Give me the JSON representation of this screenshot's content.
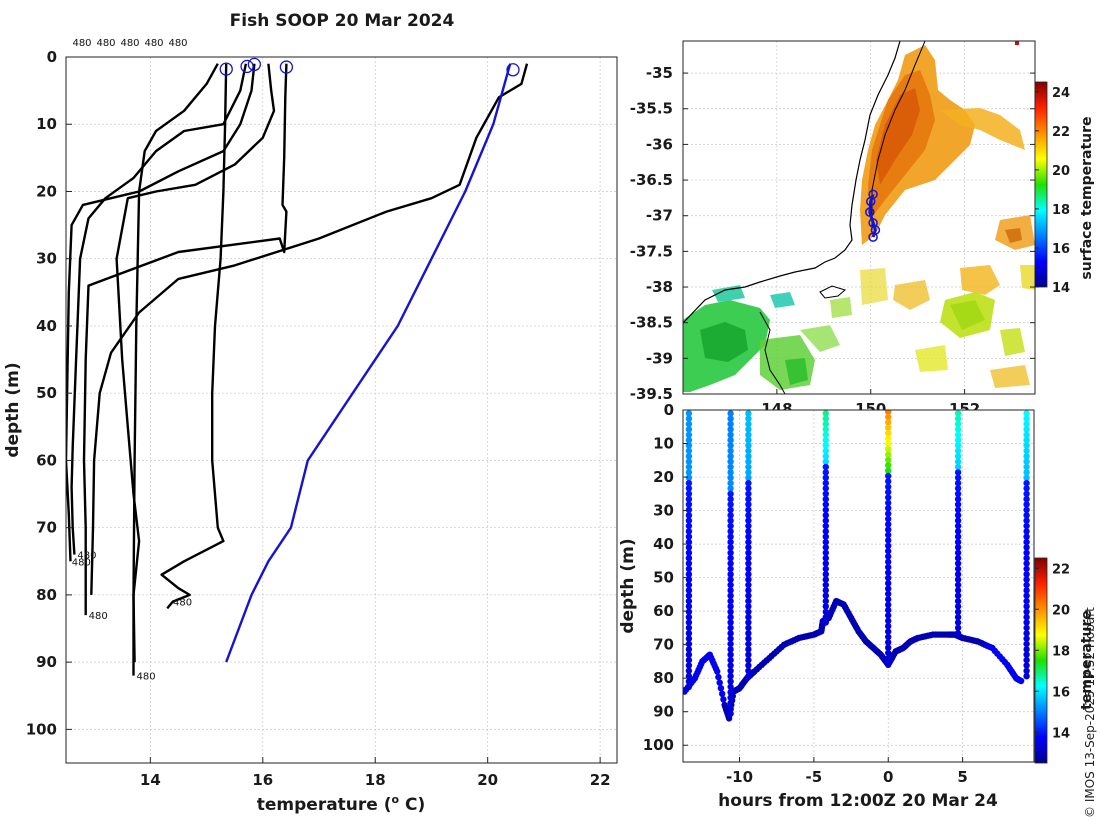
{
  "title": "Fish SOOP 20 Mar 2024",
  "credit": "© IMOS 13-Sep-2025 17:52 Hobart",
  "chart_data": [
    {
      "type": "line",
      "name": "profiles",
      "xlabel": "temperature (",
      "xlabel_sup": "o",
      "xlabel_end": " C)",
      "ylabel": "depth (m)",
      "xlim": [
        12.5,
        22.3
      ],
      "ylim": [
        105,
        0
      ],
      "xticks": [
        14,
        16,
        18,
        20,
        22
      ],
      "yticks": [
        0,
        10,
        20,
        30,
        40,
        50,
        60,
        70,
        80,
        90,
        100
      ],
      "top_labels": [
        "480",
        "480",
        "480",
        "480",
        "480"
      ],
      "end_labels": [
        {
          "text": "480",
          "x": 12.65,
          "y": 74
        },
        {
          "text": "480",
          "x": 12.55,
          "y": 75
        },
        {
          "text": "480",
          "x": 12.85,
          "y": 83
        },
        {
          "text": "480",
          "x": 13.7,
          "y": 92
        },
        {
          "text": "480",
          "x": 14.35,
          "y": 81
        }
      ],
      "surface_markers": [
        {
          "x": 15.35,
          "y": 1.8
        },
        {
          "x": 15.72,
          "y": 1.4
        },
        {
          "x": 15.85,
          "y": 1.1
        },
        {
          "x": 16.42,
          "y": 1.5
        },
        {
          "x": 20.45,
          "y": 1.9
        }
      ],
      "series": [
        {
          "color": "#000000",
          "points": [
            [
              15.35,
              1
            ],
            [
              15.33,
              10
            ],
            [
              15.3,
              20
            ],
            [
              15.25,
              30
            ],
            [
              15.15,
              40
            ],
            [
              15.1,
              50
            ],
            [
              15.1,
              60
            ],
            [
              15.2,
              70
            ],
            [
              15.3,
              72
            ],
            [
              14.6,
              75
            ],
            [
              14.2,
              77
            ],
            [
              14.5,
              79
            ],
            [
              14.7,
              80
            ],
            [
              14.4,
              81
            ],
            [
              14.3,
              82
            ]
          ]
        },
        {
          "color": "#000000",
          "points": [
            [
              15.7,
              1
            ],
            [
              15.6,
              5
            ],
            [
              15.3,
              10
            ],
            [
              14.6,
              11
            ],
            [
              14.1,
              14
            ],
            [
              13.7,
              18
            ],
            [
              13.2,
              21
            ],
            [
              12.9,
              24
            ],
            [
              12.75,
              30
            ],
            [
              12.68,
              45
            ],
            [
              12.62,
              58
            ],
            [
              12.6,
              64
            ],
            [
              12.62,
              70
            ],
            [
              12.65,
              74
            ]
          ]
        },
        {
          "color": "#000000",
          "points": [
            [
              15.85,
              1
            ],
            [
              15.8,
              5
            ],
            [
              15.6,
              10
            ],
            [
              15.3,
              14
            ],
            [
              14.5,
              17
            ],
            [
              13.8,
              20
            ],
            [
              12.8,
              22
            ],
            [
              12.6,
              25
            ],
            [
              12.55,
              35
            ],
            [
              12.52,
              50
            ],
            [
              12.5,
              60
            ],
            [
              12.55,
              68
            ],
            [
              12.58,
              75
            ]
          ]
        },
        {
          "color": "#000000",
          "points": [
            [
              16.42,
              1
            ],
            [
              16.4,
              6
            ],
            [
              16.38,
              15
            ],
            [
              16.35,
              22
            ],
            [
              16.42,
              23
            ],
            [
              16.38,
              29
            ],
            [
              16.3,
              27
            ],
            [
              14.5,
              29
            ],
            [
              12.9,
              34
            ],
            [
              12.85,
              45
            ],
            [
              12.82,
              60
            ],
            [
              12.85,
              70
            ],
            [
              12.85,
              83
            ]
          ]
        },
        {
          "color": "#000000",
          "points": [
            [
              16.1,
              1
            ],
            [
              16.15,
              5
            ],
            [
              16.2,
              8
            ],
            [
              16.0,
              12
            ],
            [
              15.5,
              16
            ],
            [
              14.8,
              19
            ],
            [
              14.1,
              20
            ],
            [
              13.6,
              21
            ],
            [
              13.4,
              30
            ],
            [
              13.5,
              45
            ],
            [
              13.6,
              55
            ],
            [
              13.7,
              65
            ],
            [
              13.8,
              72
            ],
            [
              13.7,
              80
            ],
            [
              13.7,
              92
            ]
          ]
        },
        {
          "color": "#000000",
          "points": [
            [
              20.7,
              1
            ],
            [
              20.6,
              4
            ],
            [
              20.2,
              6
            ],
            [
              19.8,
              12
            ],
            [
              19.5,
              19
            ],
            [
              19.0,
              21
            ],
            [
              18.2,
              23
            ],
            [
              17.0,
              27
            ],
            [
              15.5,
              31
            ],
            [
              14.5,
              33
            ],
            [
              13.8,
              38
            ],
            [
              13.3,
              44
            ],
            [
              13.1,
              50
            ],
            [
              13.0,
              60
            ],
            [
              12.98,
              70
            ],
            [
              12.95,
              80
            ]
          ]
        },
        {
          "color": "#000000",
          "points": [
            [
              15.2,
              1
            ],
            [
              15.0,
              4
            ],
            [
              14.6,
              8
            ],
            [
              14.1,
              11
            ],
            [
              13.9,
              14
            ],
            [
              13.8,
              20
            ],
            [
              13.75,
              40
            ],
            [
              13.72,
              60
            ],
            [
              13.7,
              80
            ],
            [
              13.72,
              90
            ]
          ]
        },
        {
          "color": "#1414d2",
          "points": [
            [
              20.4,
              1
            ],
            [
              20.1,
              10
            ],
            [
              19.6,
              20
            ],
            [
              19.0,
              30
            ],
            [
              18.4,
              40
            ],
            [
              17.6,
              50
            ],
            [
              16.8,
              60
            ],
            [
              16.5,
              70
            ],
            [
              16.1,
              75
            ],
            [
              15.8,
              80
            ],
            [
              15.35,
              90
            ]
          ]
        }
      ]
    },
    {
      "type": "heatmap",
      "name": "surface temperature map",
      "xlim": [
        146,
        153.5
      ],
      "ylim": [
        -39.5,
        -34.55
      ],
      "xticks": [
        148,
        150,
        152
      ],
      "yticks": [
        -35,
        -35.5,
        -36,
        -36.5,
        -37,
        -37.5,
        -38,
        -38.5,
        -39,
        -39.5
      ],
      "xtick_labels": [
        "148",
        "150",
        "152"
      ],
      "ytick_labels": [
        "-35",
        "-35.5",
        "-36",
        "-36.5",
        "-37",
        "-37.5",
        "-38",
        "-38.5",
        "-39",
        "-39.5"
      ],
      "colorbar": {
        "label": "surface temperature",
        "min": 14,
        "max": 24.5,
        "ticks": [
          "14",
          "16",
          "18",
          "20",
          "22",
          "24"
        ]
      },
      "track": [
        [
          150.05,
          -36.7
        ],
        [
          150.0,
          -36.8
        ],
        [
          149.98,
          -36.95
        ],
        [
          150.05,
          -37.1
        ],
        [
          150.1,
          -37.2
        ],
        [
          150.05,
          -37.3
        ]
      ]
    },
    {
      "type": "scatter",
      "name": "depth-time section",
      "xlabel": "hours from 12:00Z 20 Mar 24",
      "ylabel": "depth (m)",
      "xlim": [
        -13.8,
        9.8
      ],
      "ylim": [
        105,
        0
      ],
      "xticks": [
        "-10",
        "-5",
        "0",
        "5"
      ],
      "yticks": [
        "0",
        "10",
        "20",
        "30",
        "40",
        "50",
        "60",
        "70",
        "80",
        "90",
        "100"
      ],
      "colorbar": {
        "label": "temperature",
        "min": 12.5,
        "max": 22.5,
        "ticks": [
          "14",
          "16",
          "18",
          "20",
          "22"
        ]
      },
      "bottom_trace": [
        [
          -13.7,
          84
        ],
        [
          -13,
          80
        ],
        [
          -12.5,
          75
        ],
        [
          -12,
          73
        ],
        [
          -11.5,
          78
        ],
        [
          -11,
          88
        ],
        [
          -10.7,
          92
        ],
        [
          -10.4,
          84
        ],
        [
          -10,
          83
        ],
        [
          -9.5,
          80
        ],
        [
          -9,
          78
        ],
        [
          -8,
          74
        ],
        [
          -7,
          70
        ],
        [
          -6,
          68
        ],
        [
          -5,
          67
        ],
        [
          -4.5,
          66
        ],
        [
          -4.4,
          63
        ],
        [
          -4,
          62
        ],
        [
          -3.5,
          57
        ],
        [
          -3,
          58
        ],
        [
          -2.5,
          62
        ],
        [
          -2,
          66
        ],
        [
          -1.5,
          69
        ],
        [
          -1,
          71
        ],
        [
          -0.5,
          73
        ],
        [
          0,
          76
        ],
        [
          0.5,
          72
        ],
        [
          1,
          71
        ],
        [
          1.5,
          69
        ],
        [
          2,
          68
        ],
        [
          3,
          67
        ],
        [
          4,
          67
        ],
        [
          4.5,
          67
        ],
        [
          5,
          68
        ],
        [
          6,
          69
        ],
        [
          7,
          71
        ],
        [
          8,
          76
        ],
        [
          8.6,
          80
        ],
        [
          9,
          81
        ]
      ],
      "casts": [
        {
          "hour": -13.4,
          "top": 1,
          "bottom": 84,
          "temp_top": 15.2
        },
        {
          "hour": -10.6,
          "top": 1,
          "bottom": 92,
          "temp_top": 15.0
        },
        {
          "hour": -9.4,
          "top": 1,
          "bottom": 80,
          "temp_top": 15.6
        },
        {
          "hour": -4.2,
          "top": 1,
          "bottom": 64,
          "temp_top": 16.8
        },
        {
          "hour": 0.0,
          "top": 0.5,
          "bottom": 76,
          "temp_top": 20.2
        },
        {
          "hour": 4.7,
          "top": 1,
          "bottom": 67,
          "temp_top": 16.6
        },
        {
          "hour": 9.3,
          "top": 1,
          "bottom": 80,
          "temp_top": 16.2
        }
      ]
    }
  ]
}
